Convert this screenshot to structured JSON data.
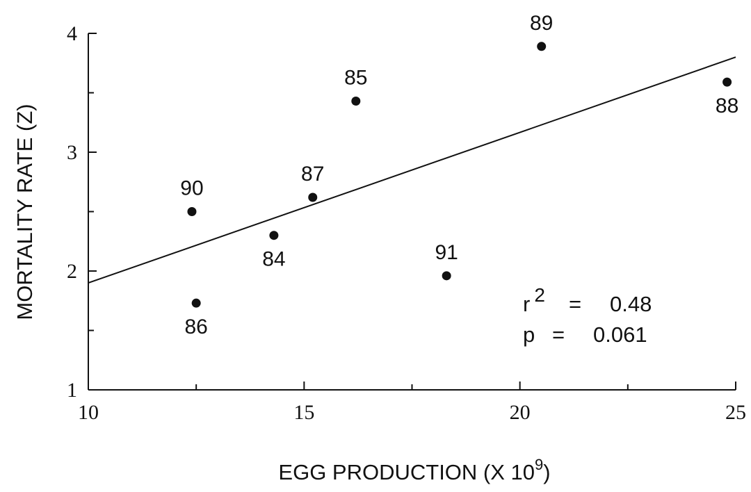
{
  "chart_data": {
    "type": "scatter",
    "title": "",
    "xlabel": "EGG PRODUCTION (X 10",
    "xlabel_sup": "9",
    "xlabel_end": ")",
    "ylabel": "MORTALITY RATE (Z)",
    "xlim": [
      10,
      25
    ],
    "ylim": [
      1,
      4
    ],
    "x_ticks": [
      "10",
      "15",
      "20",
      "25"
    ],
    "y_ticks": [
      "1",
      "2",
      "3",
      "4"
    ],
    "grid": false,
    "points": [
      {
        "label": "84",
        "x": 14.3,
        "y": 2.3,
        "label_pos": "below"
      },
      {
        "label": "85",
        "x": 16.2,
        "y": 3.43,
        "label_pos": "above"
      },
      {
        "label": "86",
        "x": 12.5,
        "y": 1.73,
        "label_pos": "below"
      },
      {
        "label": "87",
        "x": 15.2,
        "y": 2.62,
        "label_pos": "above"
      },
      {
        "label": "88",
        "x": 24.8,
        "y": 3.59,
        "label_pos": "below"
      },
      {
        "label": "89",
        "x": 20.5,
        "y": 3.89,
        "label_pos": "above"
      },
      {
        "label": "90",
        "x": 12.4,
        "y": 2.5,
        "label_pos": "above"
      },
      {
        "label": "91",
        "x": 18.3,
        "y": 1.96,
        "label_pos": "above"
      }
    ],
    "regression_line": {
      "x": [
        10,
        25
      ],
      "y": [
        1.9,
        3.8
      ]
    },
    "stats": {
      "r_label": "r",
      "r_sup": "2",
      "r_eq": "=",
      "r_value": "0.48",
      "p_label": "p",
      "p_eq": "=",
      "p_value": "0.061"
    }
  }
}
